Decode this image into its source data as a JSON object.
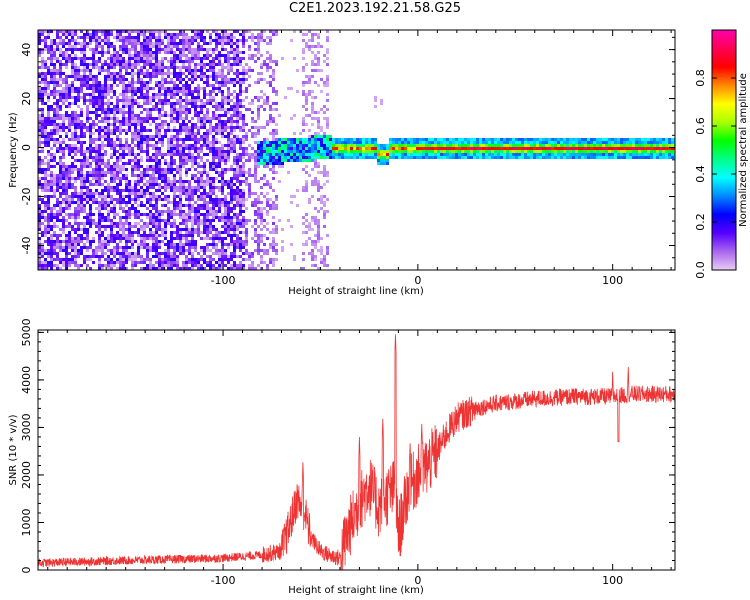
{
  "page": {
    "title": "C2E1.2023.192.21.58.G25"
  },
  "chart_data": [
    {
      "type": "heatmap",
      "title": "C2E1.2023.192.21.58.G25",
      "xlabel": "Height of straight line (km)",
      "ylabel": "Frequency (Hz)",
      "xlim": [
        -195,
        132
      ],
      "ylim": [
        -50,
        48
      ],
      "xticks": [
        -100,
        0,
        100
      ],
      "xtick_labels": [
        "-100",
        "0",
        "100"
      ],
      "yticks": [
        -40,
        -20,
        0,
        20,
        40
      ],
      "ytick_labels": [
        "-40",
        "-20",
        "0",
        "20",
        "40"
      ],
      "colorbar": {
        "label": "Normalized spectral amplitude",
        "range": [
          0,
          1
        ],
        "ticks": [
          0.0,
          0.2,
          0.4,
          0.6,
          0.8
        ],
        "tick_labels": [
          "0.0",
          "0.2",
          "0.4",
          "0.6",
          "0.8"
        ],
        "colormap_stops": [
          "#e8ccf5",
          "#aa66ee",
          "#5500ff",
          "#0000ff",
          "#0088ff",
          "#00ffff",
          "#00ff88",
          "#00ff00",
          "#aaff00",
          "#ffff00",
          "#ff8800",
          "#ff0000",
          "#ff0055",
          "#ff00aa"
        ]
      },
      "regions": [
        {
          "name": "noise",
          "x_range": [
            -195,
            -72
          ],
          "freq_range": [
            -50,
            48
          ],
          "amplitude_range": [
            0.02,
            0.2
          ]
        },
        {
          "name": "noise-gap",
          "x_range": [
            -72,
            -60
          ],
          "freq_range": [
            -50,
            48
          ],
          "amplitude_range": [
            0.0,
            0.05
          ]
        },
        {
          "name": "noise-band",
          "x_range": [
            -60,
            -46
          ],
          "freq_range": [
            -50,
            48
          ],
          "amplitude_range": [
            0.02,
            0.08
          ]
        },
        {
          "name": "signal-onset",
          "x_range": [
            -84,
            -45
          ],
          "freq_center": 0,
          "amplitude_range": [
            0.2,
            0.5
          ]
        },
        {
          "name": "signal-track",
          "x_range": [
            -45,
            132
          ],
          "freq_center": 0,
          "freq_halfwidth": 3,
          "amplitude_peak": 0.95
        }
      ]
    },
    {
      "type": "line",
      "xlabel": "Height of straight line (km)",
      "ylabel": "SNR (10 * v/v)",
      "xlim": [
        -195,
        132
      ],
      "ylim": [
        0,
        5050
      ],
      "xticks": [
        -100,
        0,
        100
      ],
      "xtick_labels": [
        "-100",
        "0",
        "100"
      ],
      "yticks": [
        0,
        1000,
        2000,
        3000,
        4000,
        5000
      ],
      "ytick_labels": [
        "0",
        "1000",
        "2000",
        "3000",
        "4000",
        "5000"
      ],
      "series": [
        {
          "name": "SNR",
          "color": "#ee3333",
          "envelope_x": [
            -195,
            -150,
            -100,
            -80,
            -70,
            -66,
            -62,
            -58,
            -55,
            -50,
            -45,
            -40,
            -35,
            -30,
            -25,
            -20,
            -15,
            -12,
            -10,
            -8,
            -5,
            0,
            5,
            10,
            15,
            20,
            30,
            40,
            60,
            80,
            100,
            110,
            120,
            132
          ],
          "envelope_y": [
            150,
            200,
            250,
            320,
            400,
            900,
            1500,
            1200,
            700,
            400,
            300,
            250,
            900,
            1400,
            1800,
            1300,
            1600,
            1700,
            800,
            1100,
            1700,
            2000,
            2200,
            2500,
            2900,
            3200,
            3400,
            3500,
            3600,
            3650,
            3650,
            3700,
            3700,
            3700
          ],
          "spikes": [
            {
              "x": -11.5,
              "y": 5000
            },
            {
              "x": -59,
              "y": 2300
            },
            {
              "x": -30,
              "y": 2800
            },
            {
              "x": -18,
              "y": 3200
            },
            {
              "x": -4,
              "y": 2700
            },
            {
              "x": 2,
              "y": 3100
            },
            {
              "x": 100,
              "y": 4200
            },
            {
              "x": 103,
              "y": 2700
            },
            {
              "x": 108,
              "y": 4300
            }
          ],
          "noise_amplitude": 180
        }
      ]
    }
  ]
}
